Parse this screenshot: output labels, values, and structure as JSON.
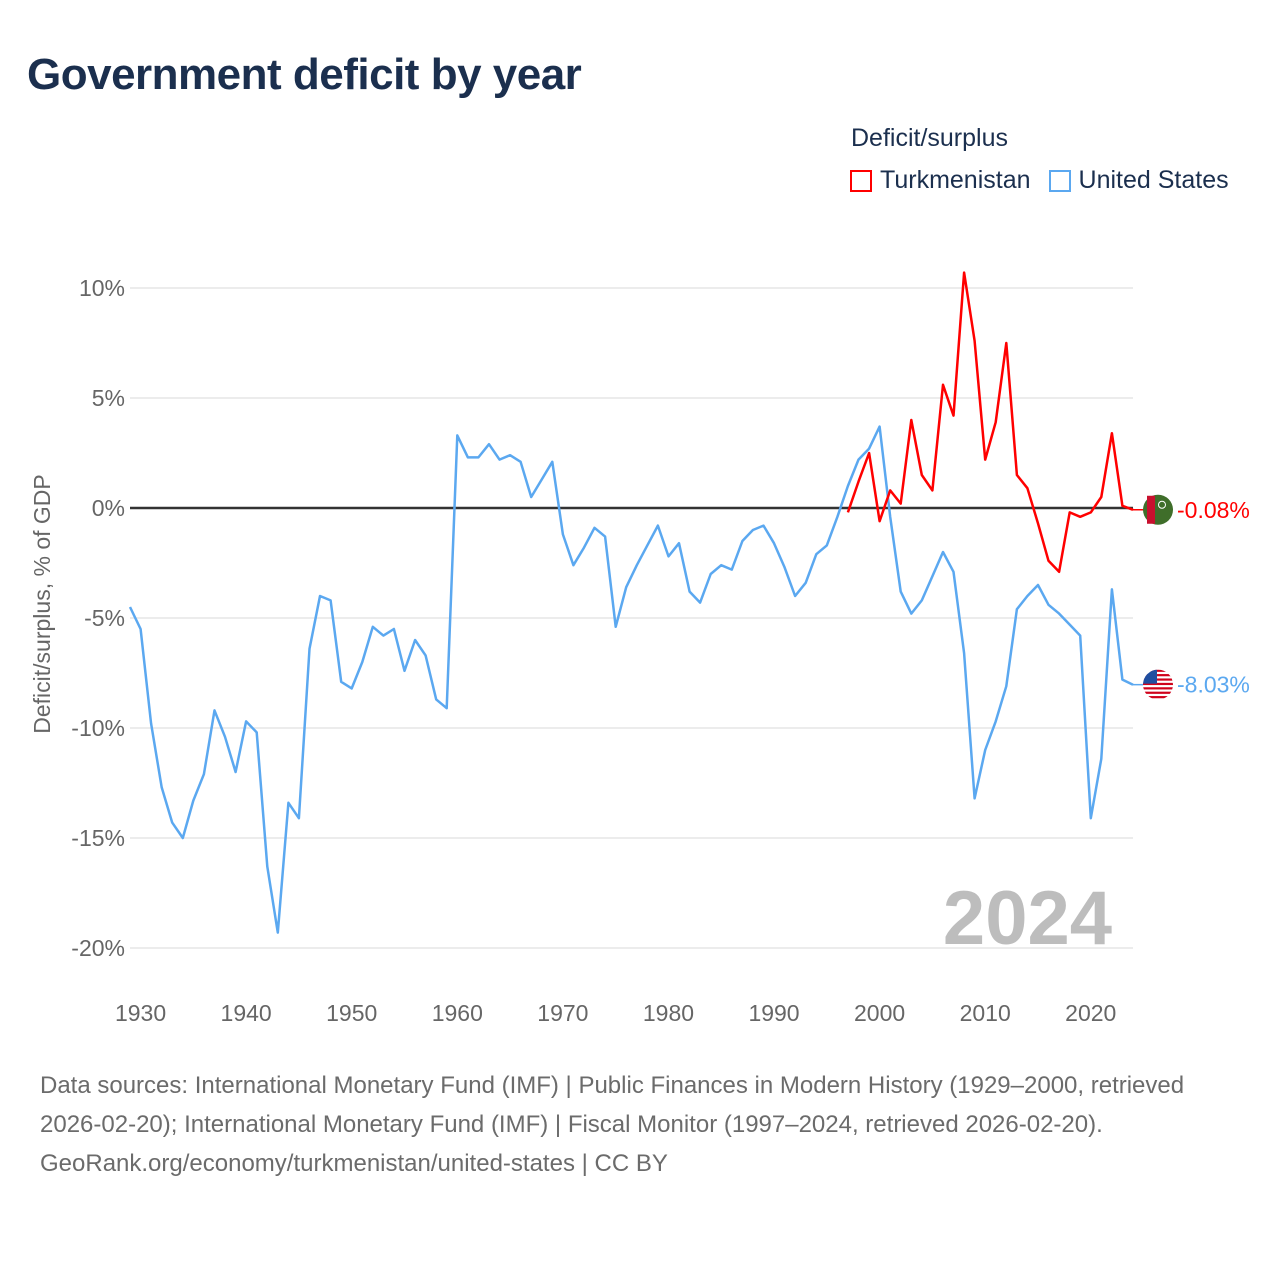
{
  "title": "Government deficit by year",
  "legend": {
    "title": "Deficit/surplus",
    "items": [
      {
        "label": "Turkmenistan",
        "color": "#ff0000"
      },
      {
        "label": "United States",
        "color": "#5ba8f0"
      }
    ]
  },
  "year_watermark": "2024",
  "footer": {
    "sources": "Data sources: International Monetary Fund (IMF) | Public Finances in Modern History (1929–2000, retrieved 2026-02-20); International Monetary Fund (IMF) | Fiscal Monitor (1997–2024, retrieved 2026-02-20).",
    "credit": "GeoRank.org/economy/turkmenistan/united-states | CC BY"
  },
  "chart_data": {
    "type": "line",
    "title": "Government deficit by year",
    "xlabel": "",
    "ylabel": "Deficit/surplus, % of GDP",
    "xlim": [
      1929,
      2024
    ],
    "ylim": [
      -20,
      10
    ],
    "x_ticks": [
      1930,
      1940,
      1950,
      1960,
      1970,
      1980,
      1990,
      2000,
      2010,
      2020
    ],
    "y_ticks": [
      10,
      5,
      0,
      -5,
      -10,
      -15,
      -20
    ],
    "y_tick_labels": [
      "10%",
      "5%",
      "0%",
      "-5%",
      "-10%",
      "-15%",
      "-20%"
    ],
    "grid": true,
    "legend_position": "top-right",
    "series": [
      {
        "name": "Turkmenistan",
        "color": "#ff0000",
        "start_year": 1997,
        "values": [
          -0.2,
          1.2,
          2.5,
          -0.6,
          0.8,
          0.2,
          4.0,
          1.5,
          0.8,
          5.6,
          4.2,
          10.7,
          7.6,
          2.2,
          3.9,
          7.5,
          1.5,
          0.9,
          -0.7,
          -2.4,
          -2.9,
          -0.2,
          -0.4,
          -0.2,
          0.5,
          3.4,
          0.1,
          -0.08
        ],
        "end_label": "-0.08%"
      },
      {
        "name": "United States",
        "color": "#5ba8f0",
        "start_year": 1929,
        "values": [
          -4.5,
          -5.5,
          -9.8,
          -12.7,
          -14.3,
          -15.0,
          -13.3,
          -12.1,
          -9.2,
          -10.4,
          -12.0,
          -9.7,
          -10.2,
          -16.3,
          -19.3,
          -13.4,
          -14.1,
          -6.4,
          -4.0,
          -4.2,
          -7.9,
          -8.2,
          -7.0,
          -5.4,
          -5.8,
          -5.5,
          -7.4,
          -6.0,
          -6.7,
          -8.7,
          -9.1,
          3.3,
          2.3,
          2.3,
          2.9,
          2.2,
          2.4,
          2.1,
          0.5,
          1.3,
          2.1,
          -1.2,
          -2.6,
          -1.8,
          -0.9,
          -1.3,
          -5.4,
          -3.6,
          -2.6,
          -1.7,
          -0.8,
          -2.2,
          -1.6,
          -3.8,
          -4.3,
          -3.0,
          -2.6,
          -2.8,
          -1.5,
          -1.0,
          -0.8,
          -1.6,
          -2.7,
          -4.0,
          -3.4,
          -2.1,
          -1.7,
          -0.4,
          1.0,
          2.2,
          2.7,
          3.7,
          -0.4,
          -3.8,
          -4.8,
          -4.2,
          -3.1,
          -2.0,
          -2.9,
          -6.6,
          -13.2,
          -11.0,
          -9.7,
          -8.1,
          -4.6,
          -4.0,
          -3.5,
          -4.4,
          -4.8,
          -5.3,
          -5.8,
          -14.1,
          -11.4,
          -3.7,
          -7.8,
          -8.03
        ],
        "end_label": "-8.03%"
      }
    ]
  }
}
